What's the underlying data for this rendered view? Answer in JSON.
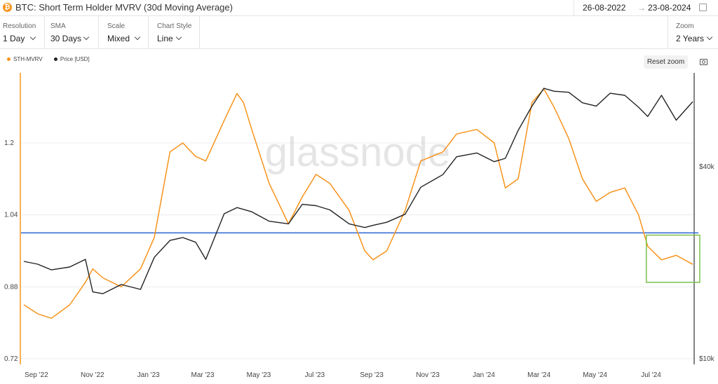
{
  "header": {
    "title": "BTC: Short Term Holder MVRV (30d Moving Average)",
    "btc_symbol": "₿",
    "date_from": "26-08-2022",
    "date_arrow": "→",
    "date_to": "23-08-2024"
  },
  "toolbar": {
    "resolution": {
      "label": "Resolution",
      "value": "1 Day"
    },
    "sma": {
      "label": "SMA",
      "value": "30 Days"
    },
    "scale": {
      "label": "Scale",
      "value": "Mixed"
    },
    "chart_style": {
      "label": "Chart Style",
      "value": "Line"
    },
    "zoom": {
      "label": "Zoom",
      "value": "2 Years"
    }
  },
  "reset_zoom_label": "Reset zoom",
  "watermark": "glassnode",
  "colors": {
    "mvrv": "#f7931a",
    "price": "#222222",
    "threshold": "#3a6fd8",
    "highlight": "#7cc04b"
  },
  "chart_data": {
    "type": "line",
    "x_ticks": [
      "Sep '22",
      "Nov '22",
      "Jan '23",
      "Mar '23",
      "May '23",
      "Jul '23",
      "Sep '23",
      "Nov '23",
      "Jan '24",
      "Mar '24",
      "May '24",
      "Jul '24"
    ],
    "y_left_ticks": [
      "1.2",
      "1.04",
      "0.88",
      "0.72"
    ],
    "y_right_ticks": [
      "$40k",
      "$10k"
    ],
    "ylim_left": [
      0.72,
      1.34
    ],
    "y_right_scale": "log",
    "threshold_line": 1.0,
    "legend_position": "top-left",
    "series": [
      {
        "name": "STH-MVRV",
        "axis": "left",
        "x": [
          "2022-08-26",
          "2022-09-10",
          "2022-09-25",
          "2022-10-15",
          "2022-11-01",
          "2022-11-09",
          "2022-11-20",
          "2022-12-10",
          "2022-12-31",
          "2023-01-15",
          "2023-02-01",
          "2023-02-15",
          "2023-03-01",
          "2023-03-12",
          "2023-04-01",
          "2023-04-15",
          "2023-04-22",
          "2023-05-01",
          "2023-05-20",
          "2023-06-10",
          "2023-06-25",
          "2023-07-10",
          "2023-07-25",
          "2023-08-15",
          "2023-09-01",
          "2023-09-10",
          "2023-09-25",
          "2023-10-15",
          "2023-11-01",
          "2023-11-25",
          "2023-12-10",
          "2024-01-01",
          "2024-01-20",
          "2024-02-01",
          "2024-02-15",
          "2024-03-01",
          "2024-03-14",
          "2024-03-25",
          "2024-04-10",
          "2024-04-25",
          "2024-05-10",
          "2024-05-25",
          "2024-06-10",
          "2024-06-25",
          "2024-07-05",
          "2024-07-20",
          "2024-08-05",
          "2024-08-23"
        ],
        "values": [
          0.84,
          0.82,
          0.81,
          0.84,
          0.89,
          0.92,
          0.9,
          0.88,
          0.92,
          0.99,
          1.18,
          1.2,
          1.17,
          1.16,
          1.25,
          1.31,
          1.29,
          1.23,
          1.11,
          1.02,
          1.08,
          1.13,
          1.11,
          1.05,
          0.96,
          0.94,
          0.96,
          1.05,
          1.16,
          1.18,
          1.22,
          1.23,
          1.2,
          1.1,
          1.12,
          1.29,
          1.32,
          1.28,
          1.21,
          1.12,
          1.07,
          1.09,
          1.1,
          1.04,
          0.97,
          0.94,
          0.95,
          0.93
        ]
      },
      {
        "name": "Price [USD]",
        "axis": "right",
        "x": [
          "2022-08-26",
          "2022-09-10",
          "2022-09-25",
          "2022-10-15",
          "2022-11-01",
          "2022-11-09",
          "2022-11-20",
          "2022-12-10",
          "2022-12-31",
          "2023-01-15",
          "2023-02-01",
          "2023-02-15",
          "2023-03-01",
          "2023-03-12",
          "2023-04-01",
          "2023-04-15",
          "2023-05-01",
          "2023-05-20",
          "2023-06-10",
          "2023-06-25",
          "2023-07-10",
          "2023-07-25",
          "2023-08-15",
          "2023-09-01",
          "2023-09-10",
          "2023-09-25",
          "2023-10-15",
          "2023-11-01",
          "2023-11-25",
          "2023-12-10",
          "2024-01-01",
          "2024-01-20",
          "2024-02-01",
          "2024-02-15",
          "2024-03-01",
          "2024-03-14",
          "2024-03-25",
          "2024-04-10",
          "2024-04-25",
          "2024-05-10",
          "2024-05-25",
          "2024-06-10",
          "2024-06-25",
          "2024-07-05",
          "2024-07-20",
          "2024-08-05",
          "2024-08-23"
        ],
        "values": [
          20200,
          19800,
          19000,
          19400,
          20500,
          16200,
          16000,
          17100,
          16500,
          20800,
          23500,
          24000,
          23200,
          20500,
          28500,
          29800,
          28900,
          27000,
          26500,
          30500,
          30200,
          29300,
          26500,
          25800,
          26200,
          26800,
          28400,
          34500,
          37800,
          43000,
          44200,
          41500,
          42500,
          52000,
          62000,
          70500,
          69000,
          68500,
          63500,
          62000,
          68000,
          67000,
          61500,
          57500,
          67000,
          56000,
          64000
        ]
      }
    ]
  }
}
